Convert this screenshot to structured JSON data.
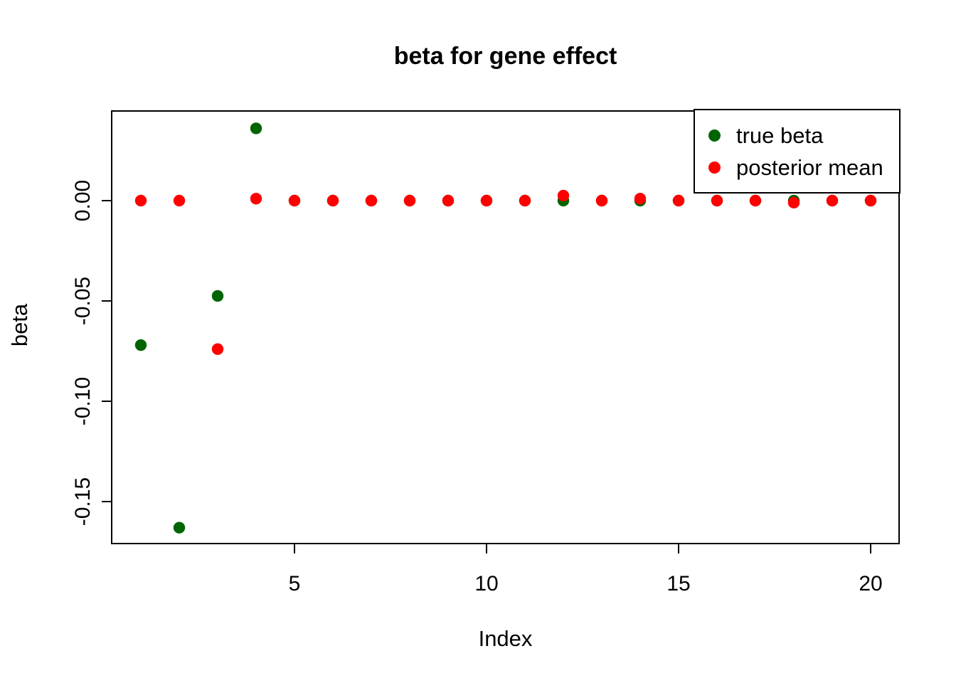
{
  "chart_data": {
    "type": "scatter",
    "title": "beta for gene effect",
    "xlabel": "Index",
    "ylabel": "beta",
    "x": [
      1,
      2,
      3,
      4,
      5,
      6,
      7,
      8,
      9,
      10,
      11,
      12,
      13,
      14,
      15,
      16,
      17,
      18,
      19,
      20
    ],
    "series": [
      {
        "name": "true beta",
        "color": "#006400",
        "values": [
          -0.072,
          -0.163,
          -0.0475,
          0.036,
          0,
          0,
          0,
          0,
          0,
          0,
          0,
          0,
          0,
          0,
          0,
          0,
          0,
          0,
          0,
          0
        ]
      },
      {
        "name": "posterior mean",
        "color": "#FF0000",
        "values": [
          0,
          0,
          -0.074,
          0.001,
          0,
          0,
          0,
          0,
          0,
          0,
          0,
          0.0025,
          0,
          0.001,
          0,
          0,
          0,
          -0.001,
          0,
          0
        ]
      }
    ],
    "xticks": [
      "5",
      "10",
      "15",
      "20"
    ],
    "xtick_values": [
      5,
      10,
      15,
      20
    ],
    "yticks": [
      "0.00",
      "-0.05",
      "-0.10",
      "-0.15"
    ],
    "ytick_values": [
      0,
      -0.05,
      -0.1,
      -0.15
    ],
    "xlim": [
      0.24,
      20.76
    ],
    "ylim": [
      -0.1706,
      0.0447
    ],
    "grid": false,
    "point_style": "filled-circle",
    "legend": {
      "position": "topright",
      "items": [
        {
          "label": "true beta",
          "color": "#006400"
        },
        {
          "label": "posterior mean",
          "color": "#FF0000"
        }
      ]
    }
  }
}
